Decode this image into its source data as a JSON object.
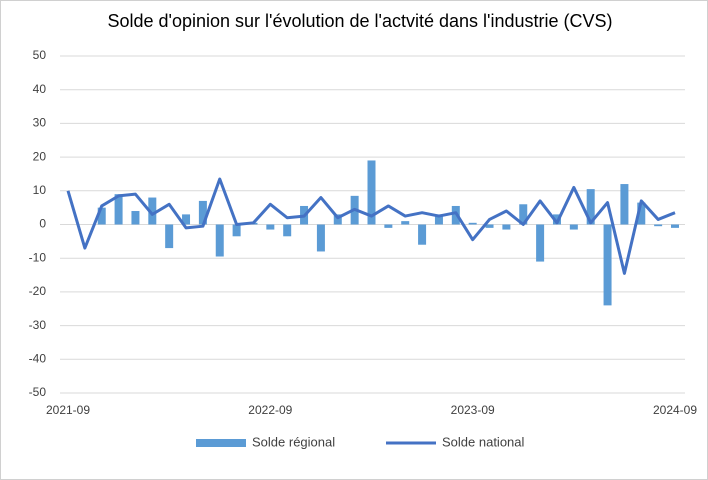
{
  "chart_data": {
    "type": "bar_line",
    "title": "Solde d'opinion sur l'évolution de l'actvité dans l'industrie (CVS)",
    "categories": [
      "2021-09",
      null,
      null,
      null,
      null,
      null,
      null,
      null,
      null,
      null,
      null,
      null,
      "2022-09",
      null,
      null,
      null,
      null,
      null,
      null,
      null,
      null,
      null,
      null,
      null,
      "2023-09",
      null,
      null,
      null,
      null,
      null,
      null,
      null,
      null,
      null,
      null,
      null,
      "2024-09"
    ],
    "series": [
      {
        "name": "Solde régional",
        "type": "bar",
        "color": "#5b9bd5",
        "values": [
          0,
          0,
          5,
          9,
          4,
          8,
          -7,
          3,
          7,
          -9.5,
          -3.5,
          0.5,
          -1.5,
          -3.5,
          5.5,
          -8,
          3,
          8.5,
          19,
          -1,
          1,
          -6,
          3,
          5.5,
          0.5,
          -1,
          -1.5,
          6,
          -11,
          3,
          -1.5,
          10.5,
          -24,
          12,
          6.5,
          -0.5,
          -1
        ]
      },
      {
        "name": "Solde national",
        "type": "line",
        "color": "#4472c4",
        "values": [
          10,
          -7,
          5.5,
          8.5,
          9,
          3,
          6,
          -1,
          -0.5,
          13.5,
          0,
          0.5,
          6,
          2,
          2.5,
          8,
          2,
          4.5,
          2.5,
          5.5,
          2.5,
          3.5,
          2.5,
          3.5,
          -4.5,
          1.5,
          4,
          0,
          7,
          0.5,
          11,
          0.5,
          6.5,
          -14.5,
          7,
          1.5,
          3.5
        ]
      }
    ],
    "ylim": [
      -50,
      50
    ],
    "yticks": [
      -50,
      -40,
      -30,
      -20,
      -10,
      0,
      10,
      20,
      30,
      40,
      50
    ],
    "grid": true,
    "legend": "bottom"
  }
}
